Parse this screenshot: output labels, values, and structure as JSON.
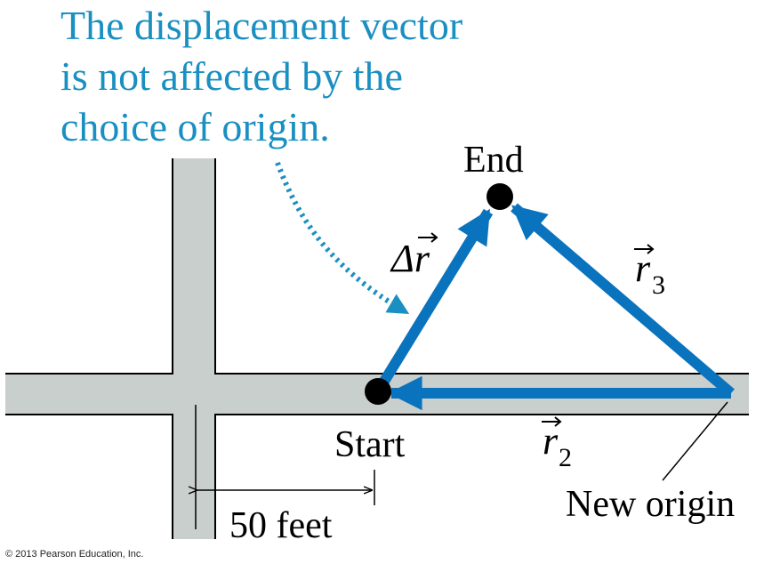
{
  "caption": {
    "line1": "The displacement vector",
    "line2": "is not affected by the",
    "line3": "choice of origin."
  },
  "labels": {
    "end": "End",
    "start": "Start",
    "new_origin": "New origin",
    "delta_r": "Δr",
    "r2_base": "r",
    "r2_sub": "2",
    "r3_base": "r",
    "r3_sub": "3",
    "distance": "50 feet"
  },
  "copyright": "© 2013 Pearson Education, Inc.",
  "colors": {
    "vector_blue": "#0a73bd",
    "caption_blue": "#1a8fc1",
    "road_fill": "#c9cfcd",
    "road_edge": "#000000",
    "point": "#000000"
  },
  "icons": {
    "point_marker": "filled-circle",
    "vector_arrow": "arrow-head",
    "curved_pointer": "dotted-curved-arrow"
  }
}
